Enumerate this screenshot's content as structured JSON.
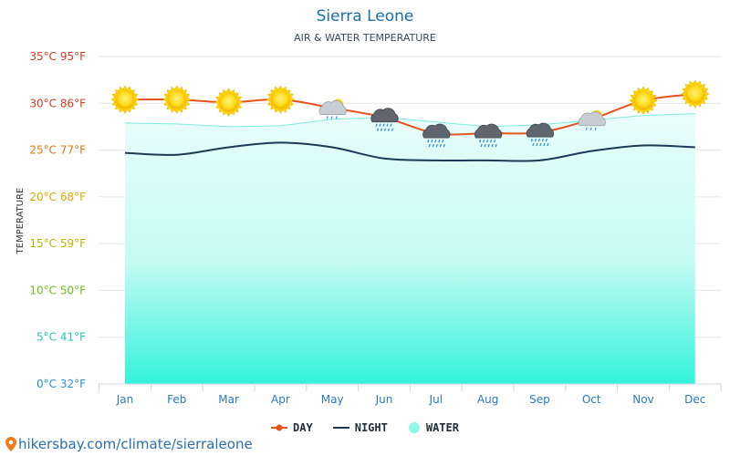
{
  "chart_data": {
    "type": "line",
    "title": "Sierra Leone",
    "subtitle": "AIR & WATER TEMPERATURE",
    "ylabel": "TEMPERATURE",
    "categories": [
      "Jan",
      "Feb",
      "Mar",
      "Apr",
      "May",
      "Jun",
      "Jul",
      "Aug",
      "Sep",
      "Oct",
      "Nov",
      "Dec"
    ],
    "ylim": [
      0,
      35
    ],
    "yticks": [
      {
        "value": 35,
        "label": "35°C 95°F",
        "color": "#d93a1f"
      },
      {
        "value": 30,
        "label": "30°C 86°F",
        "color": "#d93a1f"
      },
      {
        "value": 25,
        "label": "25°C 77°F",
        "color": "#e07a10"
      },
      {
        "value": 20,
        "label": "20°C 68°F",
        "color": "#d9a800"
      },
      {
        "value": 15,
        "label": "15°C 59°F",
        "color": "#b5b800"
      },
      {
        "value": 10,
        "label": "10°C 50°F",
        "color": "#6cc21a"
      },
      {
        "value": 5,
        "label": "5°C 41°F",
        "color": "#24c6b8"
      },
      {
        "value": 0,
        "label": "0°C 32°F",
        "color": "#2a8fd6"
      }
    ],
    "series": [
      {
        "name": "DAY",
        "type": "line",
        "color": "#e8521c",
        "values": [
          30.4,
          30.4,
          30.1,
          30.4,
          29.5,
          28.5,
          26.8,
          26.8,
          26.9,
          28.3,
          30.3,
          31.0
        ]
      },
      {
        "name": "NIGHT",
        "type": "line",
        "color": "#1b3a57",
        "values": [
          24.7,
          24.5,
          25.3,
          25.8,
          25.3,
          24.1,
          23.9,
          23.9,
          23.9,
          24.9,
          25.5,
          25.3
        ]
      },
      {
        "name": "WATER",
        "type": "area",
        "color": "#8ff7ea",
        "values": [
          27.9,
          27.8,
          27.5,
          27.6,
          28.3,
          28.5,
          28.0,
          27.5,
          27.7,
          28.2,
          28.7,
          28.9
        ]
      }
    ],
    "weather_icons": [
      "sun",
      "sun",
      "sun",
      "sun",
      "partly-cloudy-rain",
      "rain-cloud",
      "rain-cloud",
      "rain-cloud",
      "rain-cloud",
      "partly-cloudy-rain",
      "sun",
      "sun"
    ],
    "legend_position": "bottom",
    "grid": true
  },
  "legend": {
    "day": "DAY",
    "night": "NIGHT",
    "water": "WATER"
  },
  "credit": "hikersbay.com/climate/sierraleone"
}
